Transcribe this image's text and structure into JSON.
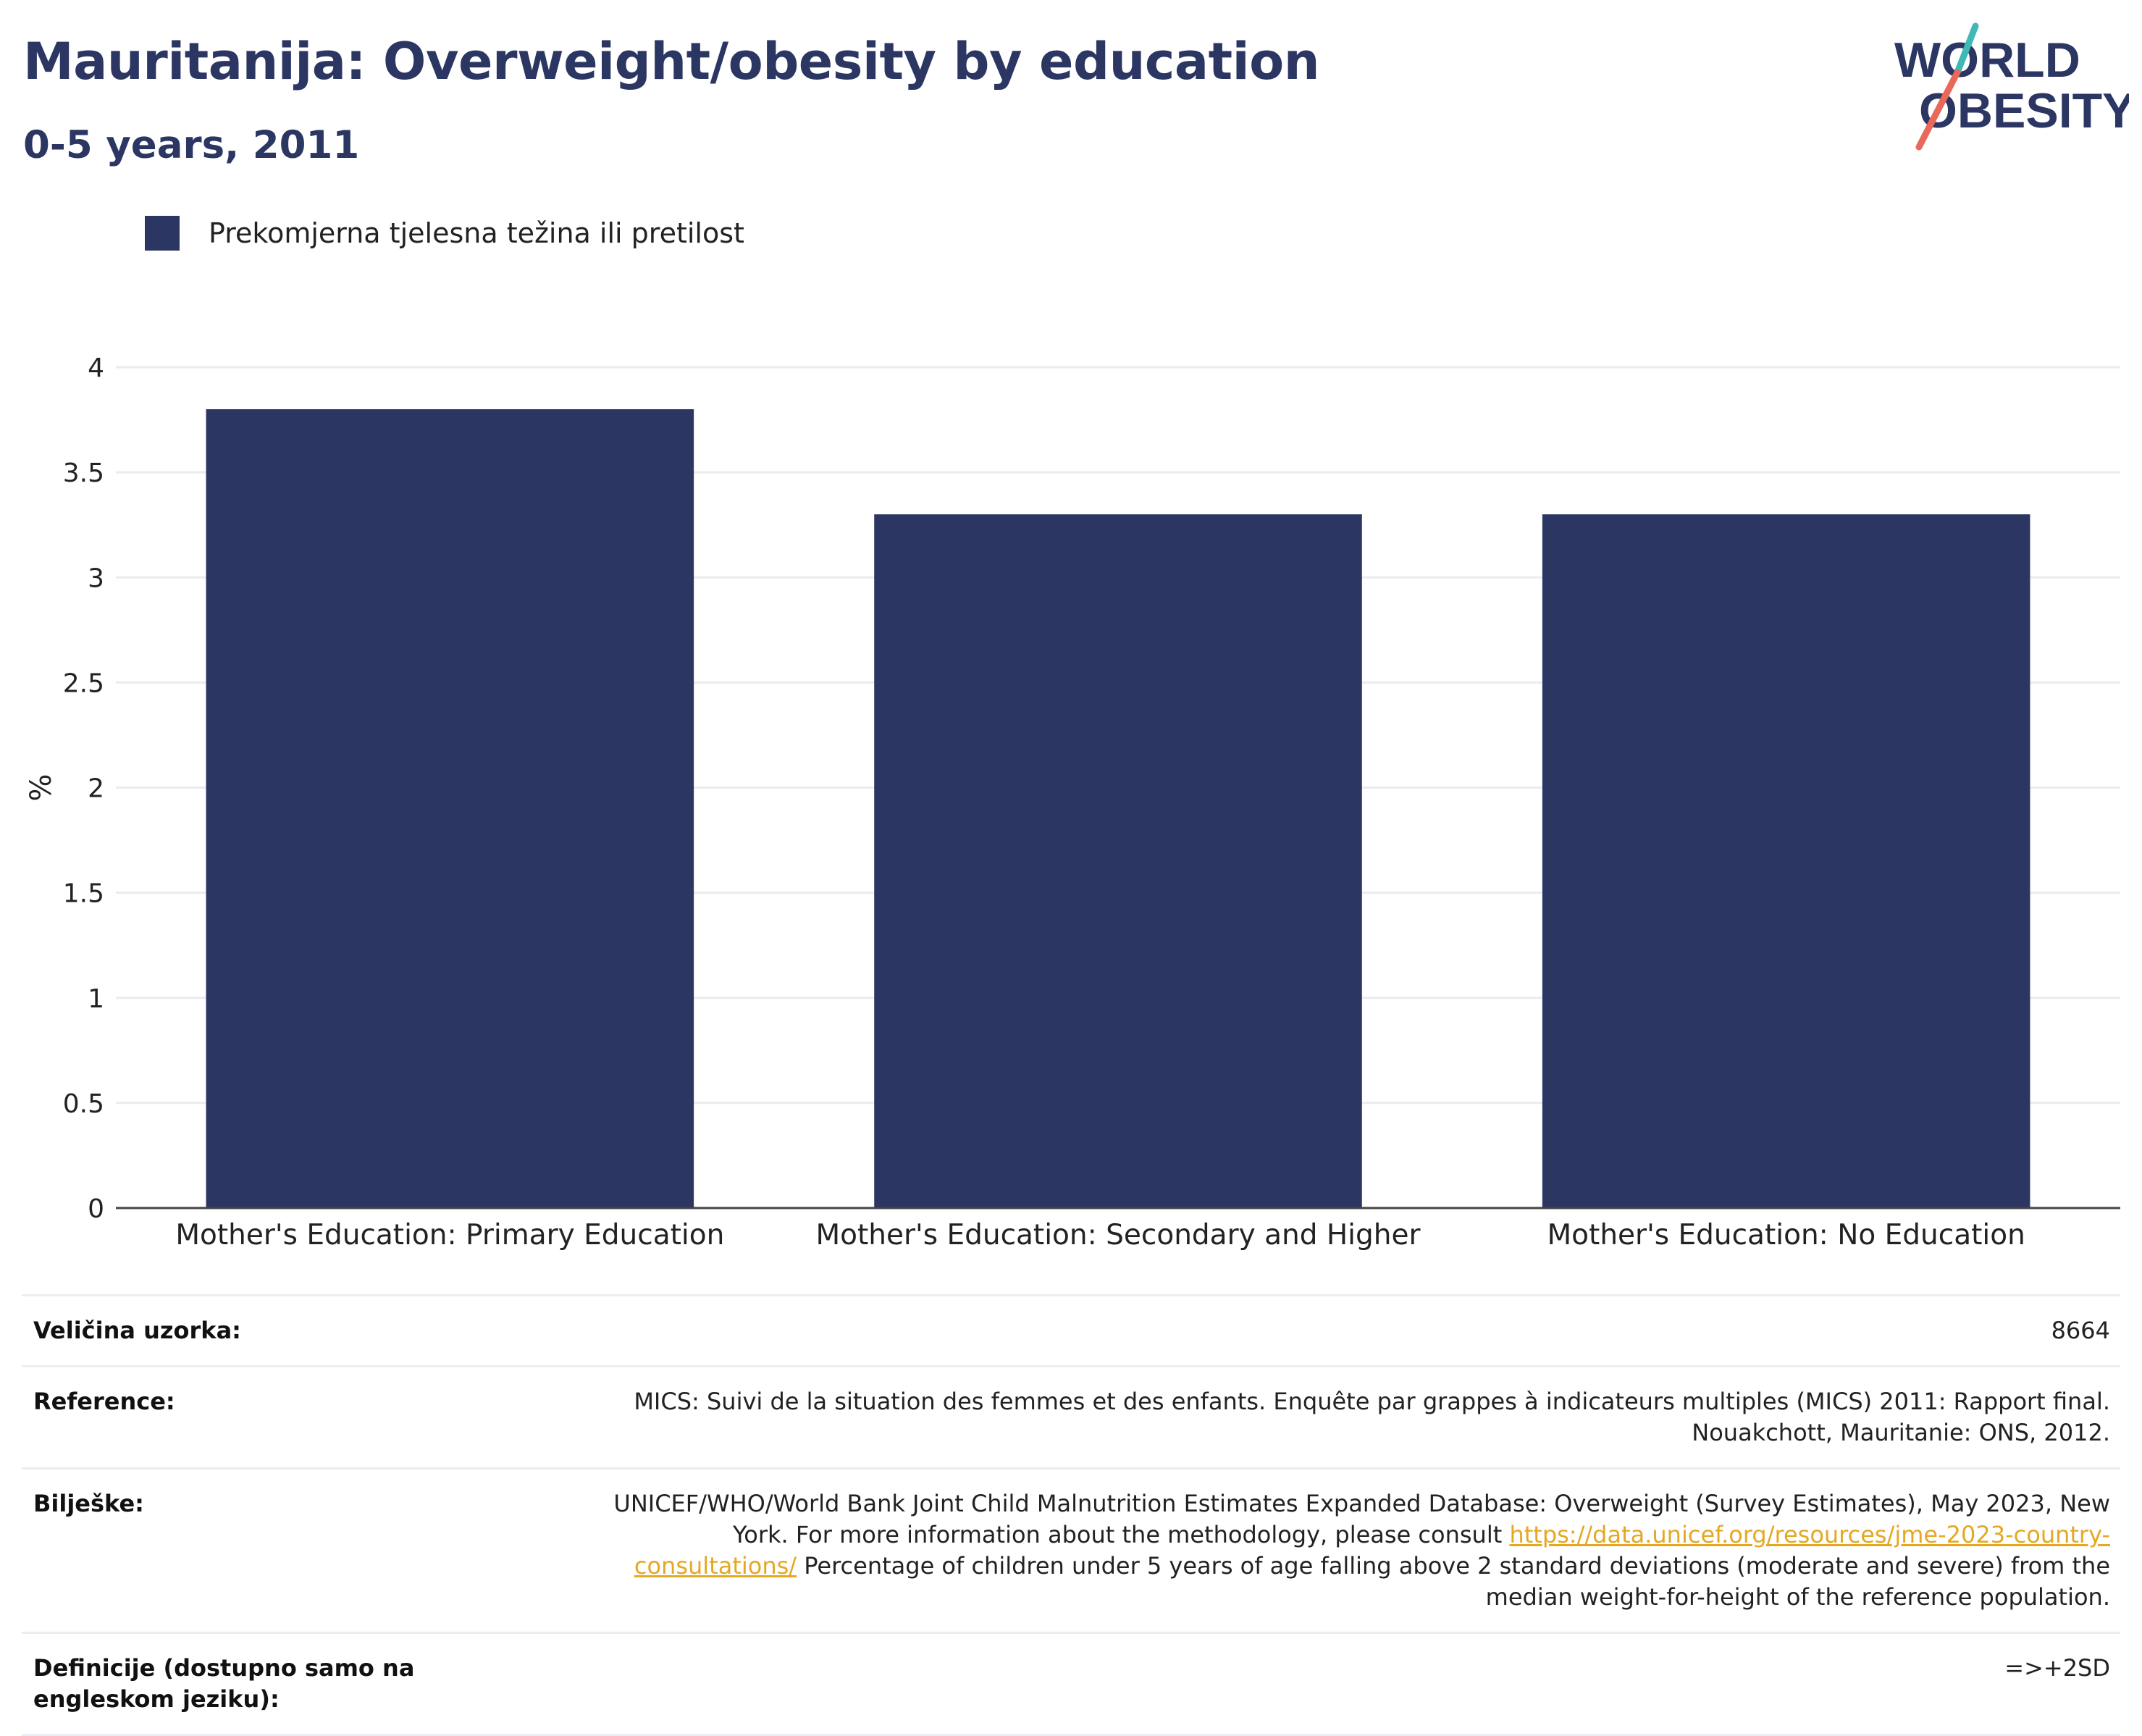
{
  "header": {
    "title": "Mauritanija: Overweight/obesity by education",
    "subtitle": "0-5 years, 2011"
  },
  "logo": {
    "line1": "WORLD",
    "line2": "OBESITY"
  },
  "legend": {
    "label": "Prekomjerna tjelesna težina ili pretilost"
  },
  "colors": {
    "bar": "#2b3663",
    "accent_red": "#e8685a",
    "accent_teal": "#3fb9b5",
    "link": "#e5a823",
    "grid": "#e9ecef"
  },
  "chart_data": {
    "type": "bar",
    "categories": [
      "Mother's Education: Primary Education",
      "Mother's Education: Secondary and Higher",
      "Mother's Education: No Education"
    ],
    "series": [
      {
        "name": "Prekomjerna tjelesna težina ili pretilost",
        "values": [
          3.8,
          3.3,
          3.3
        ]
      }
    ],
    "ylabel": "%",
    "ylim": [
      0,
      4
    ],
    "yticks": [
      0,
      0.5,
      1,
      1.5,
      2,
      2.5,
      3,
      3.5,
      4
    ],
    "grid": true,
    "legend_position": "top-left"
  },
  "meta": {
    "sample_label": "Veličina uzorka:",
    "sample_value": "8664",
    "reference_label": "Reference:",
    "reference_value": "MICS: Suivi de la situation des femmes et des enfants. Enquête par grappes à indicateurs multiples (MICS) 2011: Rapport final. Nouakchott, Mauritanie: ONS, 2012.",
    "notes_label": "Bilješke:",
    "notes_text1": "UNICEF/WHO/World Bank Joint Child Malnutrition Estimates Expanded Database: Overweight (Survey Estimates), May 2023, New York. For more information about the methodology, please consult ",
    "notes_link": "https://data.unicef.org/resources/jme-2023-country-consultations/",
    "notes_text2": " Percentage of children under 5 years of age falling above 2 standard deviations (moderate and severe) from the median weight-for-height of the reference population.",
    "definitions_label": "Definicije (dostupno samo na engleskom jeziku):",
    "definitions_value": "=>+2SD"
  }
}
